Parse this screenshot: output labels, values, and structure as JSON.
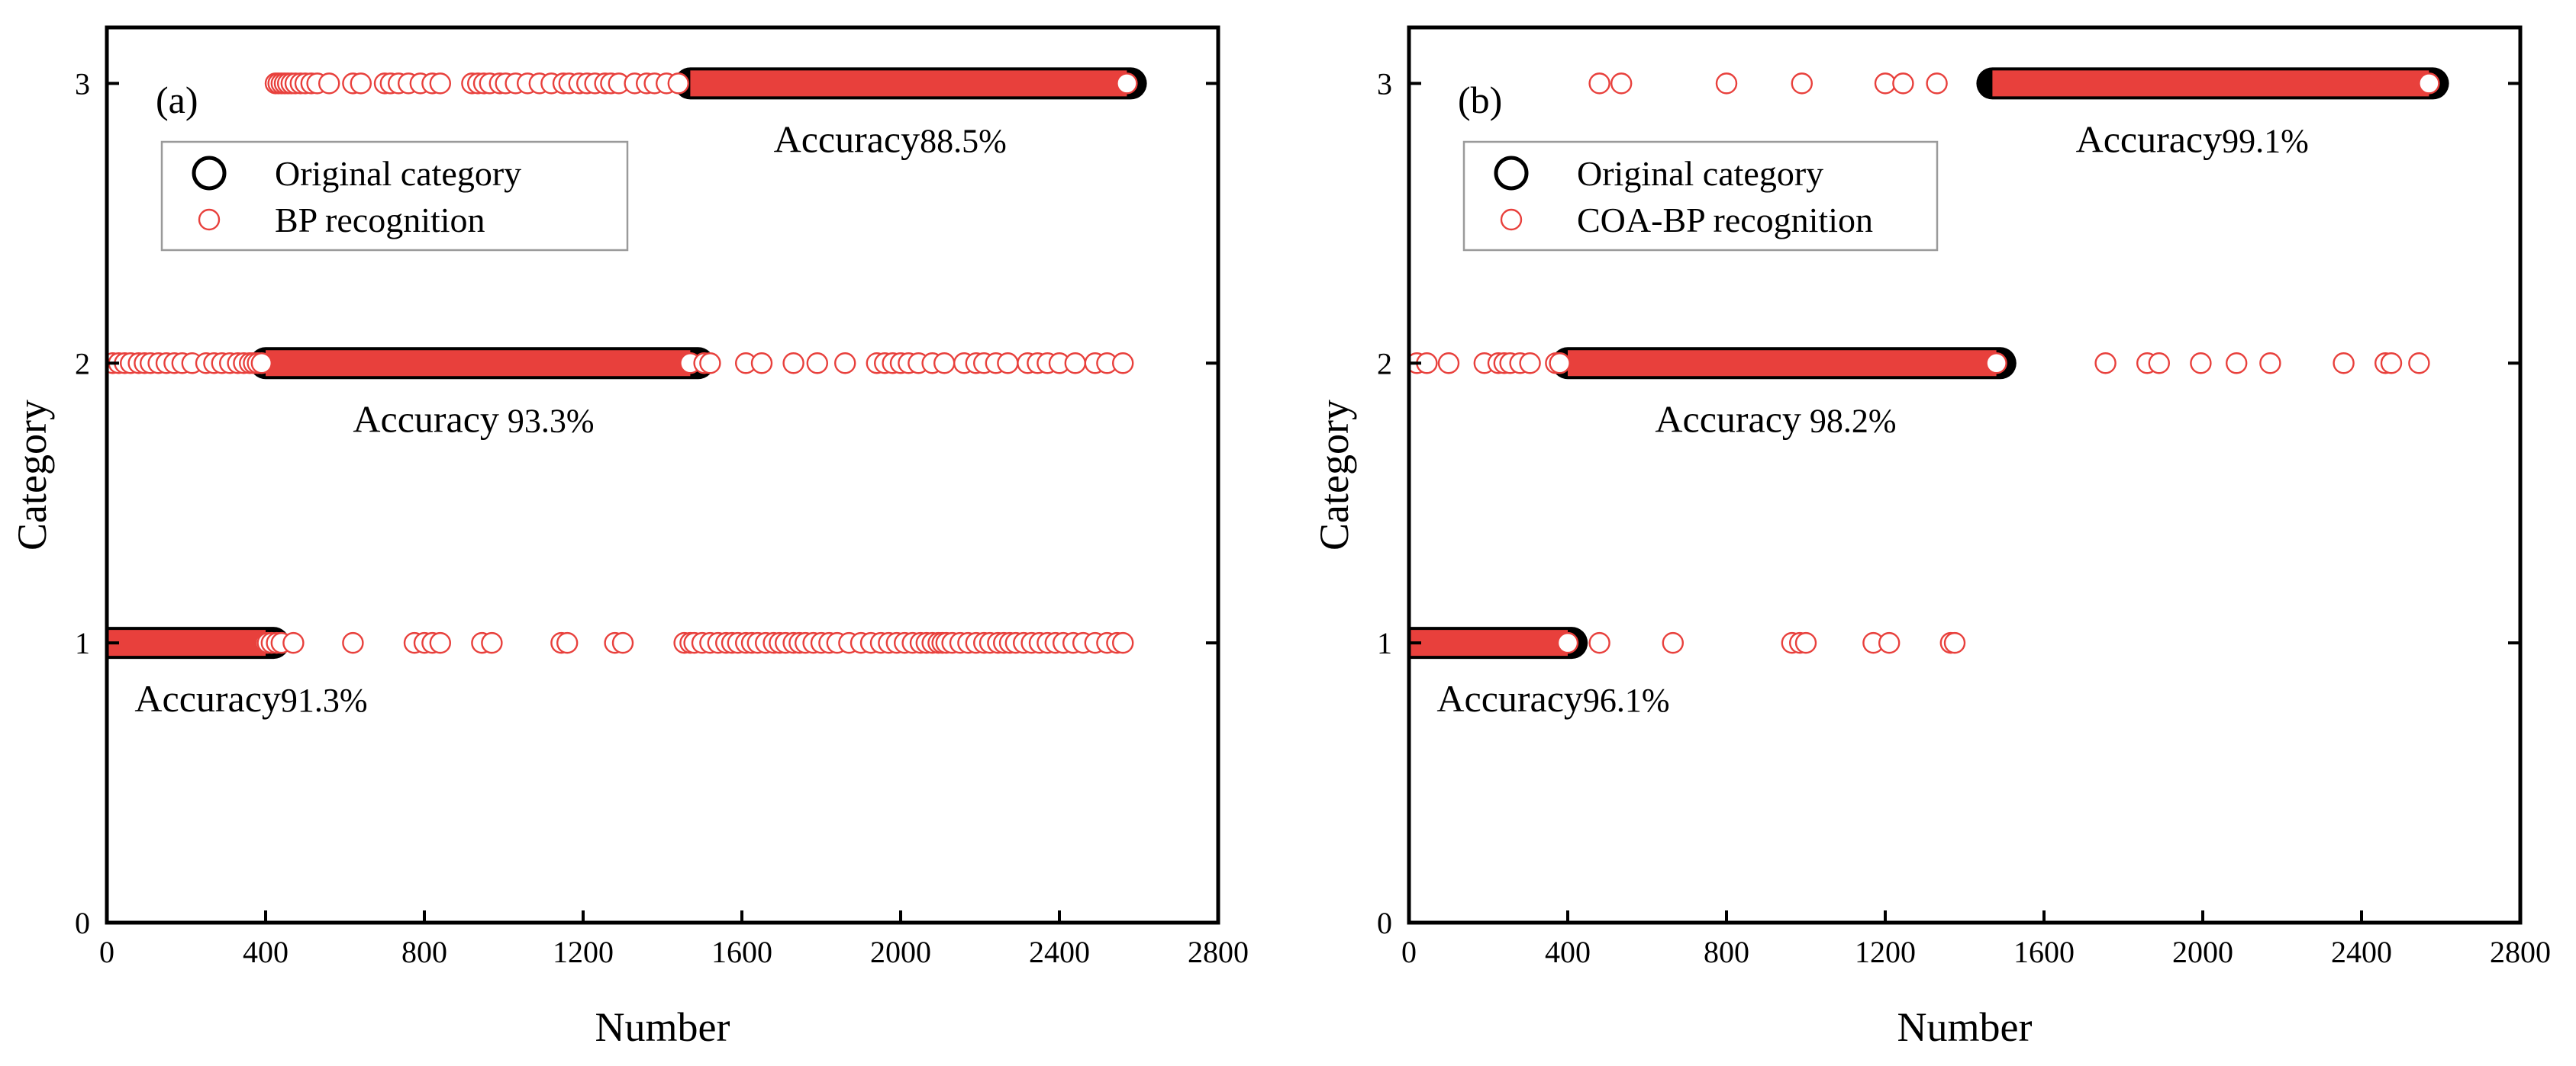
{
  "chart_data": [
    {
      "type": "scatter",
      "panel_label": "(a)",
      "xlabel": "Number",
      "ylabel": "Category",
      "xlim": [
        0,
        2800
      ],
      "ylim": [
        0,
        3.2
      ],
      "xticks": [
        "0",
        "400",
        "800",
        "1200",
        "1600",
        "2000",
        "2400",
        "2800"
      ],
      "yticks": [
        "0",
        "1",
        "2",
        "3"
      ],
      "legend": {
        "position": "upper-left",
        "entries": [
          {
            "label": "Original category",
            "marker": "large-black-circle"
          },
          {
            "label": "BP recognition",
            "marker": "small-red-circle"
          }
        ]
      },
      "series": [
        {
          "name": "Original category",
          "color": "#000000",
          "segments": [
            {
              "category": 1,
              "x_from": 0,
              "x_to": 420
            },
            {
              "category": 2,
              "x_from": 400,
              "x_to": 1490
            },
            {
              "category": 3,
              "x_from": 1470,
              "x_to": 2580
            }
          ]
        },
        {
          "name": "BP recognition",
          "color": "#e8403c",
          "segments": [
            {
              "category": 1,
              "x_from": 0,
              "x_to": 400
            },
            {
              "category": 2,
              "x_from": 400,
              "x_to": 1470
            },
            {
              "category": 3,
              "x_from": 1470,
              "x_to": 2570
            }
          ],
          "misclassified": [
            {
              "category": 3,
              "x": [
                425,
                432,
                440,
                448,
                456,
                465,
                475,
                488,
                500,
                515,
                530,
                560,
                620,
                640,
                700,
                715,
                735,
                760,
                790,
                820,
                840,
                920,
                935,
                950,
                965,
                990,
                1005,
                1030,
                1060,
                1090,
                1120,
                1150,
                1165,
                1190,
                1210,
                1230,
                1255,
                1270,
                1290,
                1330,
                1360,
                1380,
                1410,
                1440
              ]
            },
            {
              "category": 2,
              "x": [
                15,
                30,
                45,
                60,
                80,
                95,
                110,
                130,
                150,
                170,
                190,
                215,
                250,
                270,
                290,
                310,
                330,
                345,
                360,
                370,
                380,
                390,
                1505,
                1520,
                1610,
                1650,
                1730,
                1790,
                1860,
                1940,
                1960,
                1980,
                2000,
                2020,
                2045,
                2080,
                2110,
                2160,
                2190,
                2210,
                2240,
                2270,
                2320,
                2345,
                2370,
                2400,
                2440,
                2490,
                2520,
                2560
              ]
            },
            {
              "category": 1,
              "x": [
                405,
                415,
                428,
                440,
                470,
                620,
                775,
                800,
                820,
                840,
                945,
                970,
                1145,
                1160,
                1280,
                1300,
                1455,
                1470,
                1480,
                1500,
                1520,
                1540,
                1560,
                1575,
                1590,
                1610,
                1625,
                1640,
                1660,
                1680,
                1695,
                1710,
                1730,
                1745,
                1760,
                1780,
                1800,
                1820,
                1840,
                1870,
                1900,
                1925,
                1950,
                1970,
                1990,
                2010,
                2030,
                2050,
                2065,
                2080,
                2095,
                2105,
                2115,
                2130,
                2150,
                2170,
                2190,
                2210,
                2225,
                2245,
                2260,
                2275,
                2290,
                2310,
                2330,
                2350,
                2370,
                2390,
                2410,
                2435,
                2460,
                2490,
                2520,
                2545,
                2560
              ]
            }
          ]
        }
      ],
      "annotations": [
        {
          "label": "Accuracy",
          "value": "88.5%",
          "category": 3,
          "x": 1680
        },
        {
          "label": "Accuracy",
          "value": " 93.3%",
          "category": 2,
          "x": 620
        },
        {
          "label": "Accuracy",
          "value": "91.3%",
          "category": 1,
          "x": 70
        }
      ]
    },
    {
      "type": "scatter",
      "panel_label": "(b)",
      "xlabel": "Number",
      "ylabel": "Category",
      "xlim": [
        0,
        2800
      ],
      "ylim": [
        0,
        3.2
      ],
      "xticks": [
        "0",
        "400",
        "800",
        "1200",
        "1600",
        "2000",
        "2400",
        "2800"
      ],
      "yticks": [
        "0",
        "1",
        "2",
        "3"
      ],
      "legend": {
        "position": "upper-left",
        "entries": [
          {
            "label": "Original category",
            "marker": "large-black-circle"
          },
          {
            "label": "COA-BP recognition",
            "marker": "small-red-circle"
          }
        ]
      },
      "series": [
        {
          "name": "Original category",
          "color": "#000000",
          "segments": [
            {
              "category": 1,
              "x_from": 0,
              "x_to": 410
            },
            {
              "category": 2,
              "x_from": 400,
              "x_to": 1490
            },
            {
              "category": 3,
              "x_from": 1470,
              "x_to": 2580
            }
          ]
        },
        {
          "name": "COA-BP recognition",
          "color": "#e8403c",
          "segments": [
            {
              "category": 1,
              "x_from": 0,
              "x_to": 400
            },
            {
              "category": 2,
              "x_from": 400,
              "x_to": 1480
            },
            {
              "category": 3,
              "x_from": 1470,
              "x_to": 2570
            }
          ],
          "misclassified": [
            {
              "category": 3,
              "x": [
                480,
                535,
                800,
                990,
                1200,
                1245,
                1330
              ]
            },
            {
              "category": 2,
              "x": [
                20,
                45,
                100,
                190,
                225,
                240,
                255,
                280,
                305,
                370,
                380,
                1755,
                1860,
                1890,
                1995,
                2085,
                2170,
                2355,
                2460,
                2475,
                2545
              ]
            },
            {
              "category": 1,
              "x": [
                480,
                665,
                965,
                985,
                1000,
                1170,
                1210,
                1365,
                1375
              ]
            }
          ]
        }
      ],
      "annotations": [
        {
          "label": "Accuracy",
          "value": "99.1%",
          "category": 3,
          "x": 1680
        },
        {
          "label": "Accuracy",
          "value": " 98.2%",
          "category": 2,
          "x": 620
        },
        {
          "label": "Accuracy",
          "value": "96.1%",
          "category": 1,
          "x": 70
        }
      ]
    }
  ]
}
